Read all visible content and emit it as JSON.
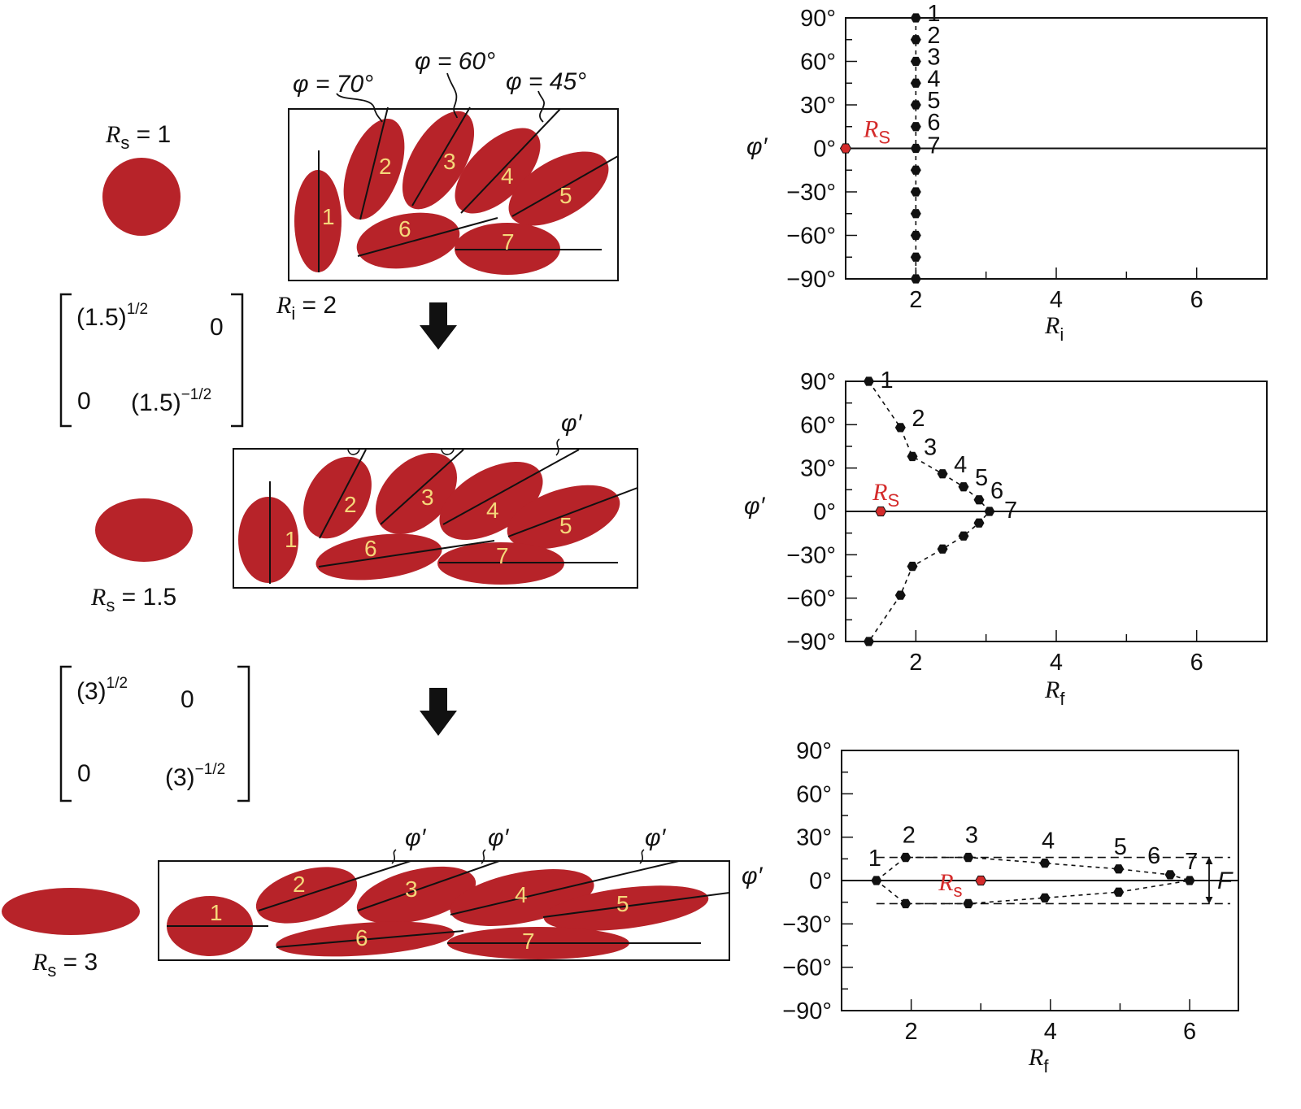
{
  "colors": {
    "grain": "#b72329",
    "grain_label": "#f5d77a",
    "ink": "#111111",
    "rs_marker": "#d42b2b"
  },
  "stages": [
    {
      "circle_label": {
        "sym": "R",
        "sub": "s",
        "rest": " = 1"
      },
      "ri_label": {
        "sym": "R",
        "sub": "i",
        "rest": " = 2"
      },
      "angle_labels": [
        "φ = 70°",
        "φ = 60°",
        "φ = 45°"
      ],
      "grains": [
        "1",
        "2",
        "3",
        "4",
        "5",
        "6",
        "7"
      ]
    },
    {
      "circle_label": {
        "sym": "R",
        "sub": "s",
        "rest": " = 1.5"
      },
      "angle_labels": [
        "φ′"
      ],
      "grains": [
        "1",
        "2",
        "3",
        "4",
        "5",
        "6",
        "7"
      ]
    },
    {
      "circle_label": {
        "sym": "R",
        "sub": "s",
        "rest": " = 3"
      },
      "angle_labels": [
        "φ′",
        "φ′",
        "φ′"
      ],
      "side_label": "φ′",
      "grains": [
        "1",
        "2",
        "3",
        "4",
        "5",
        "6",
        "7"
      ]
    }
  ],
  "matrices": [
    {
      "a": "(1.5)",
      "a_sup": "1/2",
      "b": "0",
      "c": "0",
      "d": "(1.5)",
      "d_sup": "−1/2"
    },
    {
      "a": "(3)",
      "a_sup": "1/2",
      "b": "0",
      "c": "0",
      "d": "(3)",
      "d_sup": "−1/2"
    }
  ],
  "chart_data": [
    {
      "type": "scatter",
      "ylabel": "φ′",
      "xlabel": {
        "sym": "R",
        "sub": "i"
      },
      "x_ticks": [
        "2",
        "4",
        "6"
      ],
      "y_ticks": [
        "90°",
        "60°",
        "30°",
        "0°",
        "−30°",
        "−60°",
        "−90°"
      ],
      "xlim": [
        1,
        7
      ],
      "ylim": [
        -90,
        90
      ],
      "rs_marker": {
        "label": "R",
        "sub": "S",
        "x": 1,
        "y": 0
      },
      "points": [
        {
          "x": 2,
          "y": 90
        },
        {
          "x": 2,
          "y": 75
        },
        {
          "x": 2,
          "y": 60
        },
        {
          "x": 2,
          "y": 45
        },
        {
          "x": 2,
          "y": 30
        },
        {
          "x": 2,
          "y": 15
        },
        {
          "x": 2,
          "y": 0
        },
        {
          "x": 2,
          "y": -15
        },
        {
          "x": 2,
          "y": -30
        },
        {
          "x": 2,
          "y": -45
        },
        {
          "x": 2,
          "y": -60
        },
        {
          "x": 2,
          "y": -75
        },
        {
          "x": 2,
          "y": -90
        }
      ],
      "labels": [
        "1",
        "2",
        "3",
        "4",
        "5",
        "6",
        "7"
      ]
    },
    {
      "type": "scatter",
      "ylabel": "φ′",
      "xlabel": {
        "sym": "R",
        "sub": "f"
      },
      "x_ticks": [
        "2",
        "4",
        "6"
      ],
      "y_ticks": [
        "90°",
        "60°",
        "30°",
        "0°",
        "−30°",
        "−60°",
        "−90°"
      ],
      "xlim": [
        1,
        7
      ],
      "ylim": [
        -90,
        90
      ],
      "rs_marker": {
        "label": "R",
        "sub": "S",
        "x": 1.5,
        "y": 0
      },
      "points": [
        {
          "x": 1.33,
          "y": 90
        },
        {
          "x": 1.78,
          "y": 58
        },
        {
          "x": 1.95,
          "y": 38
        },
        {
          "x": 2.38,
          "y": 26
        },
        {
          "x": 2.68,
          "y": 17
        },
        {
          "x": 2.9,
          "y": 8
        },
        {
          "x": 3.05,
          "y": 0
        },
        {
          "x": 2.9,
          "y": -8
        },
        {
          "x": 2.68,
          "y": -17
        },
        {
          "x": 2.38,
          "y": -26
        },
        {
          "x": 1.95,
          "y": -38
        },
        {
          "x": 1.78,
          "y": -58
        },
        {
          "x": 1.33,
          "y": -90
        }
      ],
      "labels": [
        "1",
        "2",
        "3",
        "4",
        "5",
        "6",
        "7"
      ]
    },
    {
      "type": "scatter",
      "ylabel": "φ′",
      "xlabel": {
        "sym": "R",
        "sub": "f"
      },
      "x_ticks": [
        "2",
        "4",
        "6"
      ],
      "y_ticks": [
        "90°",
        "60°",
        "30°",
        "0°",
        "−30°",
        "−60°",
        "−90°"
      ],
      "xlim": [
        1,
        6.7
      ],
      "ylim": [
        -90,
        90
      ],
      "rs_marker": {
        "label": "R",
        "sub": "s",
        "x": 3,
        "y": 0
      },
      "envelope_label": "F",
      "envelope": [
        -16,
        16
      ],
      "points": [
        {
          "x": 1.5,
          "y": 0
        },
        {
          "x": 1.92,
          "y": 16
        },
        {
          "x": 2.82,
          "y": 16
        },
        {
          "x": 3.92,
          "y": 12
        },
        {
          "x": 4.98,
          "y": 8
        },
        {
          "x": 5.72,
          "y": 4
        },
        {
          "x": 6,
          "y": 0
        },
        {
          "x": 4.98,
          "y": -8
        },
        {
          "x": 3.92,
          "y": -12
        },
        {
          "x": 2.82,
          "y": -16
        },
        {
          "x": 1.92,
          "y": -16
        }
      ],
      "labels": [
        "1",
        "2",
        "3",
        "4",
        "5",
        "6",
        "7"
      ]
    }
  ]
}
